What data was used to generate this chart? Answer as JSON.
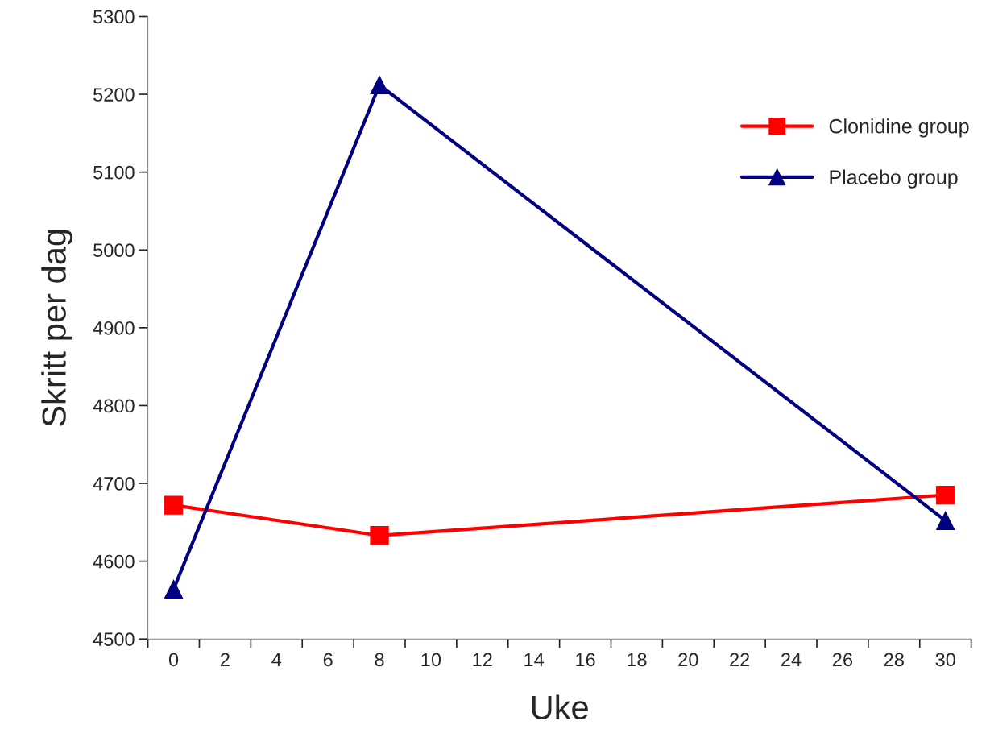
{
  "chart_data": {
    "type": "line",
    "xlabel": "Uke",
    "ylabel": "Skritt per dag",
    "categories": [
      "0",
      "2",
      "4",
      "6",
      "8",
      "10",
      "12",
      "14",
      "16",
      "18",
      "20",
      "22",
      "24",
      "26",
      "28",
      "30"
    ],
    "series": [
      {
        "name": "Clonidine group",
        "color": "#ff0000",
        "marker": "square",
        "values": [
          4672,
          null,
          null,
          null,
          4633,
          null,
          null,
          null,
          null,
          null,
          null,
          null,
          null,
          null,
          null,
          4685
        ]
      },
      {
        "name": "Placebo group",
        "color": "#000080",
        "marker": "triangle",
        "values": [
          4564,
          null,
          null,
          null,
          5212,
          null,
          null,
          null,
          null,
          null,
          null,
          null,
          null,
          null,
          null,
          4652
        ]
      }
    ],
    "ylim": [
      4500,
      5300
    ],
    "yticks": [
      4500,
      4600,
      4700,
      4800,
      4900,
      5000,
      5100,
      5200,
      5300
    ],
    "grid": false,
    "legend": "right",
    "line_style": "solid"
  }
}
